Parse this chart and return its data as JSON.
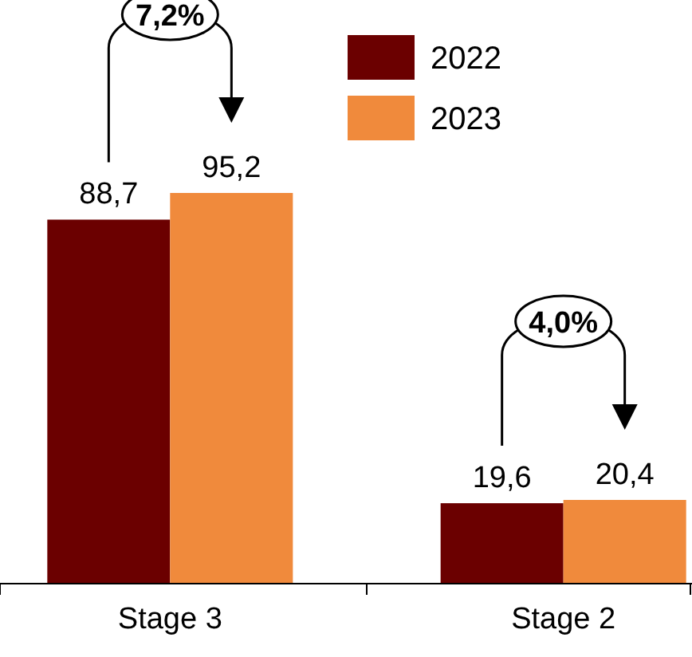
{
  "chart_data": {
    "type": "bar",
    "categories": [
      "Stage 3",
      "Stage 2"
    ],
    "series": [
      {
        "name": "2022",
        "color": "#6b0000",
        "values": [
          88.7,
          19.6
        ],
        "value_labels": [
          "88,7",
          "19,6"
        ]
      },
      {
        "name": "2023",
        "color": "#f08a3c",
        "values": [
          95.2,
          20.4
        ],
        "value_labels": [
          "95,2",
          "20,4"
        ]
      }
    ],
    "annotations": [
      "7,2%",
      "4,0%"
    ],
    "legend": "top right"
  }
}
